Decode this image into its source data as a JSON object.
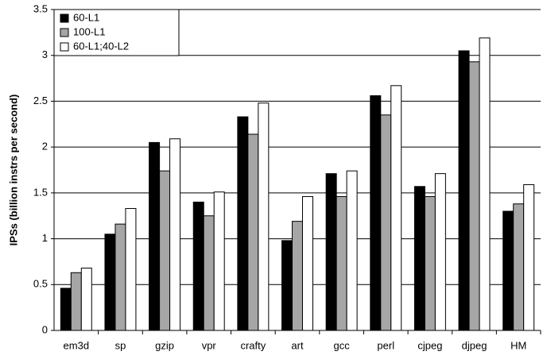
{
  "chart_data": {
    "type": "bar",
    "y_label": "IPSs (billion instrs per second)",
    "categories": [
      "em3d",
      "sp",
      "gzip",
      "vpr",
      "crafty",
      "art",
      "gcc",
      "perl",
      "cjpeg",
      "djpeg",
      "HM"
    ],
    "series": [
      {
        "name": "60-L1",
        "color": "#000000",
        "values": [
          0.46,
          1.05,
          2.05,
          1.4,
          2.33,
          0.98,
          1.71,
          2.56,
          1.57,
          3.05,
          1.3
        ]
      },
      {
        "name": "100-L1",
        "color": "#a6a6a6",
        "values": [
          0.63,
          1.16,
          1.74,
          1.25,
          2.14,
          1.19,
          1.46,
          2.35,
          1.46,
          2.93,
          1.38
        ]
      },
      {
        "name": "60-L1;40-L2",
        "color": "#ffffff",
        "values": [
          0.68,
          1.33,
          2.09,
          1.51,
          2.48,
          1.46,
          1.74,
          2.67,
          1.71,
          3.19,
          1.59
        ]
      }
    ],
    "ylim": [
      0,
      3.5
    ],
    "yticks": [
      0,
      0.5,
      1,
      1.5,
      2,
      2.5,
      3,
      3.5
    ],
    "grid": true,
    "legend": "top-left"
  }
}
